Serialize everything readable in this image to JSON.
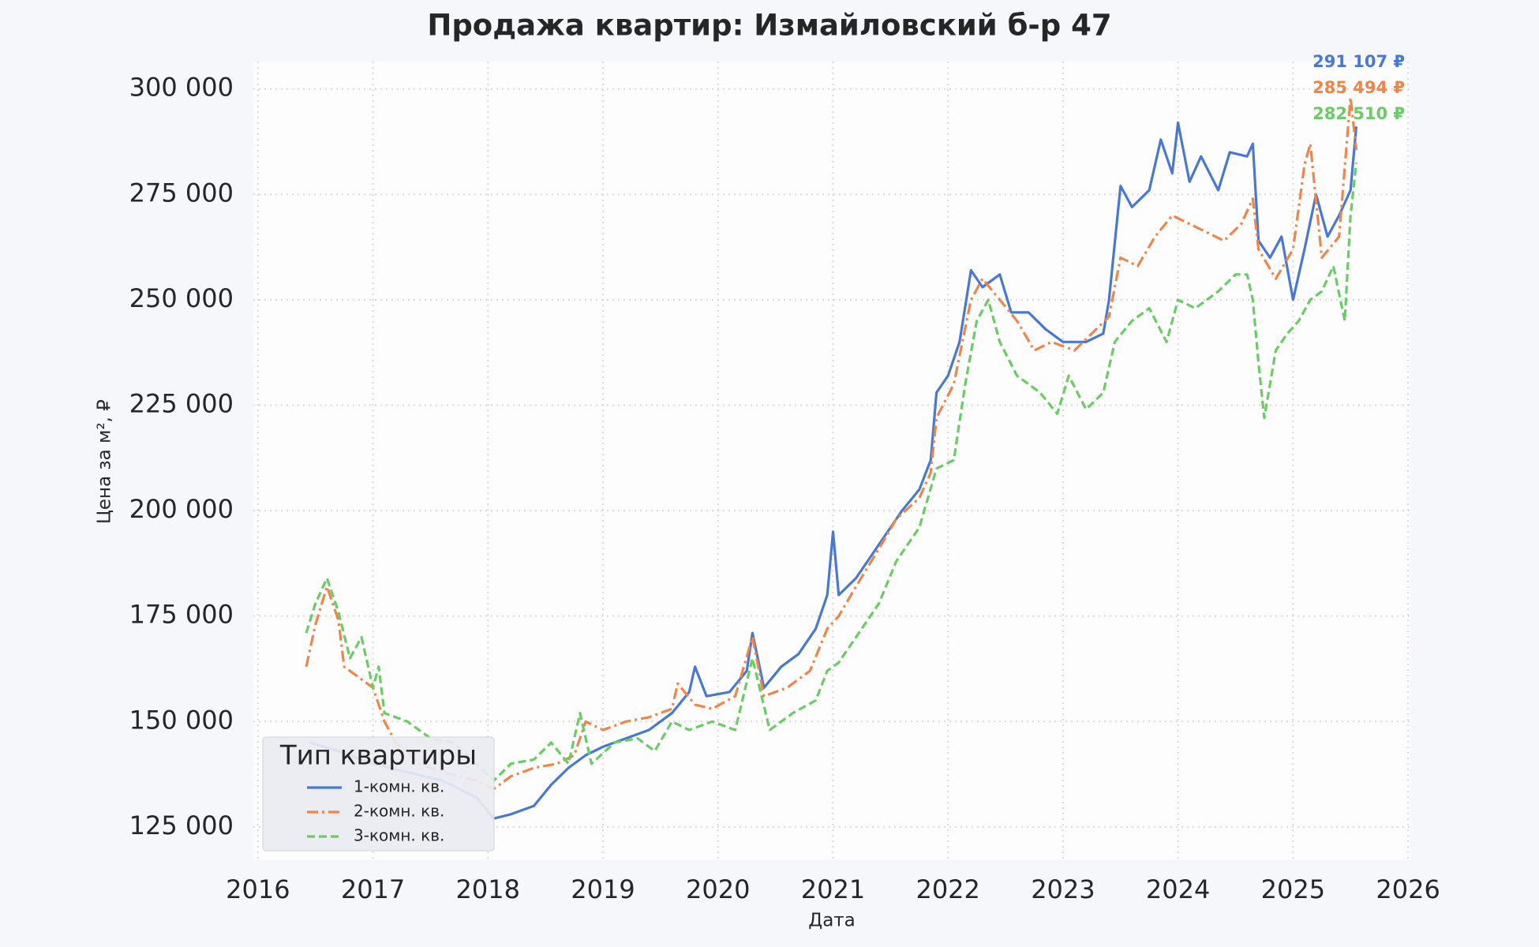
{
  "chart_data": {
    "type": "line",
    "title": "Продажа квартир: Измайловский б-р 47",
    "xlabel": "Дата",
    "ylabel": "Цена за м², ₽",
    "xlim": [
      2015.96,
      2026.02
    ],
    "xticks": [
      2016,
      2017,
      2018,
      2019,
      2020,
      2021,
      2022,
      2023,
      2024,
      2025,
      2026
    ],
    "ylim": [
      117300,
      306500
    ],
    "yticks": [
      {
        "value": 125000,
        "label": "125 000"
      },
      {
        "value": 150000,
        "label": "150 000"
      },
      {
        "value": 175000,
        "label": "175 000"
      },
      {
        "value": 200000,
        "label": "200 000"
      },
      {
        "value": 225000,
        "label": "225 000"
      },
      {
        "value": 250000,
        "label": "250 000"
      },
      {
        "value": 275000,
        "label": "275 000"
      },
      {
        "value": 300000,
        "label": "300 000"
      }
    ],
    "grid": true,
    "legend": {
      "title": "Тип квартиры",
      "loc": "lower left"
    },
    "series": [
      {
        "name": "1-комн. кв.",
        "color": "#4878d0",
        "dash": "solid",
        "x": [
          2016.45,
          2016.7,
          2017.0,
          2017.3,
          2017.6,
          2017.9,
          2018.05,
          2018.2,
          2018.4,
          2018.55,
          2018.7,
          2018.85,
          2019.0,
          2019.2,
          2019.4,
          2019.6,
          2019.75,
          2019.8,
          2019.9,
          2020.1,
          2020.25,
          2020.3,
          2020.4,
          2020.55,
          2020.7,
          2020.85,
          2020.95,
          2021.0,
          2021.05,
          2021.2,
          2021.35,
          2021.5,
          2021.6,
          2021.75,
          2021.85,
          2021.9,
          2022.0,
          2022.1,
          2022.2,
          2022.3,
          2022.45,
          2022.55,
          2022.7,
          2022.85,
          2023.0,
          2023.2,
          2023.35,
          2023.4,
          2023.5,
          2023.6,
          2023.75,
          2023.85,
          2023.95,
          2024.0,
          2024.1,
          2024.2,
          2024.35,
          2024.45,
          2024.6,
          2024.65,
          2024.7,
          2024.8,
          2024.9,
          2025.0,
          2025.1,
          2025.2,
          2025.3,
          2025.4,
          2025.5,
          2025.55
        ],
        "values": [
          145000,
          143000,
          140000,
          138000,
          136000,
          132000,
          127000,
          128000,
          130000,
          135000,
          139000,
          142000,
          144000,
          146000,
          148000,
          152000,
          157000,
          163000,
          156000,
          157000,
          162000,
          171000,
          158000,
          163000,
          166000,
          172000,
          180000,
          195000,
          180000,
          184000,
          190000,
          196000,
          200000,
          205000,
          212000,
          228000,
          232000,
          240000,
          257000,
          253000,
          256000,
          247000,
          247000,
          243000,
          240000,
          240000,
          242000,
          250000,
          277000,
          272000,
          276000,
          288000,
          280000,
          292000,
          278000,
          284000,
          276000,
          285000,
          284000,
          287000,
          264000,
          260000,
          265000,
          250000,
          262000,
          275000,
          265000,
          270000,
          276000,
          291107
        ]
      },
      {
        "name": "2-комн. кв.",
        "color": "#ee854a",
        "dash": "dashdot",
        "x": [
          2016.42,
          2016.5,
          2016.6,
          2016.7,
          2016.75,
          2016.9,
          2017.0,
          2017.1,
          2017.2,
          2017.4,
          2017.6,
          2017.9,
          2018.05,
          2018.2,
          2018.4,
          2018.6,
          2018.75,
          2018.85,
          2019.0,
          2019.2,
          2019.4,
          2019.6,
          2019.65,
          2019.8,
          2019.95,
          2020.15,
          2020.3,
          2020.4,
          2020.6,
          2020.8,
          2020.95,
          2021.05,
          2021.2,
          2021.4,
          2021.55,
          2021.75,
          2021.85,
          2021.9,
          2022.05,
          2022.2,
          2022.3,
          2022.45,
          2022.6,
          2022.75,
          2022.9,
          2023.1,
          2023.25,
          2023.4,
          2023.5,
          2023.65,
          2023.8,
          2023.95,
          2024.1,
          2024.25,
          2024.4,
          2024.55,
          2024.65,
          2024.7,
          2024.85,
          2025.0,
          2025.1,
          2025.15,
          2025.25,
          2025.4,
          2025.5,
          2025.55
        ],
        "values": [
          163000,
          173000,
          182000,
          174000,
          163000,
          160000,
          158000,
          150000,
          145000,
          140000,
          138000,
          136000,
          134000,
          137000,
          139000,
          140000,
          142000,
          150000,
          148000,
          150000,
          151000,
          153000,
          159000,
          154000,
          153000,
          156000,
          170000,
          156000,
          158000,
          162000,
          172000,
          175000,
          182000,
          191000,
          198000,
          203000,
          209000,
          222000,
          230000,
          250000,
          255000,
          250000,
          245000,
          238000,
          240000,
          238000,
          242000,
          246000,
          260000,
          258000,
          265000,
          270000,
          268000,
          266000,
          264000,
          268000,
          274000,
          262000,
          255000,
          262000,
          282000,
          287000,
          260000,
          265000,
          298000,
          285494
        ]
      },
      {
        "name": "3-комн. кв.",
        "color": "#6acc64",
        "dash": "dashed",
        "x": [
          2016.42,
          2016.5,
          2016.6,
          2016.7,
          2016.8,
          2016.9,
          2017.0,
          2017.05,
          2017.1,
          2017.3,
          2017.5,
          2017.7,
          2017.9,
          2018.05,
          2018.2,
          2018.4,
          2018.55,
          2018.7,
          2018.8,
          2018.9,
          2019.1,
          2019.3,
          2019.45,
          2019.6,
          2019.75,
          2019.95,
          2020.15,
          2020.3,
          2020.45,
          2020.65,
          2020.85,
          2020.95,
          2021.05,
          2021.2,
          2021.4,
          2021.55,
          2021.75,
          2021.9,
          2022.05,
          2022.15,
          2022.25,
          2022.35,
          2022.45,
          2022.6,
          2022.8,
          2022.95,
          2023.05,
          2023.2,
          2023.35,
          2023.45,
          2023.6,
          2023.75,
          2023.9,
          2024.0,
          2024.15,
          2024.35,
          2024.5,
          2024.6,
          2024.65,
          2024.7,
          2024.75,
          2024.85,
          2024.95,
          2025.05,
          2025.15,
          2025.25,
          2025.35,
          2025.45,
          2025.5,
          2025.55
        ],
        "values": [
          171000,
          178000,
          184000,
          176000,
          165000,
          170000,
          158000,
          163000,
          152000,
          150000,
          146000,
          145000,
          140000,
          136000,
          140000,
          141000,
          145000,
          140000,
          152000,
          140000,
          145000,
          146000,
          143000,
          150000,
          148000,
          150000,
          148000,
          165000,
          148000,
          152000,
          155000,
          162000,
          164000,
          170000,
          178000,
          188000,
          196000,
          210000,
          212000,
          230000,
          245000,
          250000,
          240000,
          232000,
          228000,
          223000,
          232000,
          224000,
          228000,
          240000,
          245000,
          248000,
          240000,
          250000,
          248000,
          252000,
          256000,
          256000,
          250000,
          235000,
          222000,
          238000,
          242000,
          245000,
          250000,
          252000,
          258000,
          245000,
          270000,
          282510
        ]
      }
    ],
    "annotations": [
      {
        "text": "291 107 ₽",
        "color": "#4878d0"
      },
      {
        "text": "285 494 ₽",
        "color": "#ee854a"
      },
      {
        "text": "282 510 ₽",
        "color": "#6acc64"
      }
    ]
  }
}
